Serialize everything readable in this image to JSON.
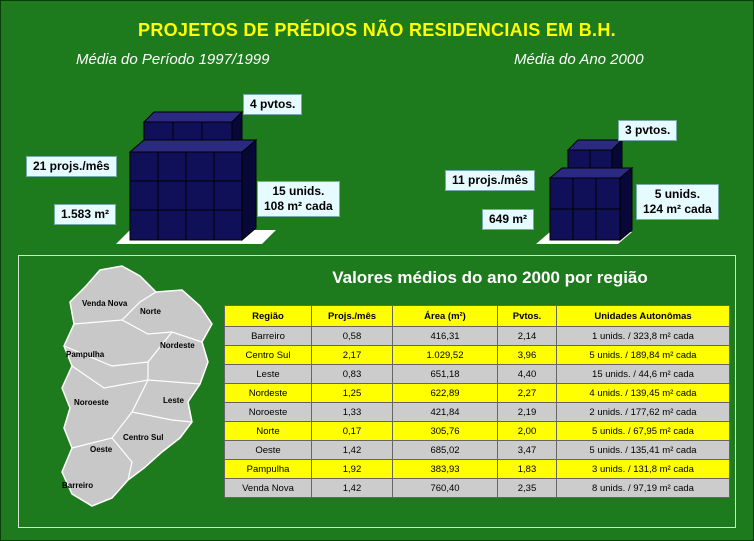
{
  "header": {
    "title": "PROJETOS DE PRÉDIOS NÃO RESIDENCIAIS EM B.H.",
    "subtitle_left": "Média do Período 1997/1999",
    "subtitle_right": "Média do Ano 2000"
  },
  "left_block": {
    "floors_label": "4 pvtos.",
    "projects_label": "21 projs./mês",
    "area_label": "1.583 m²",
    "units_line1": "15 unids.",
    "units_line2": "108 m² cada"
  },
  "right_block": {
    "floors_label": "3 pvtos.",
    "projects_label": "11 projs./mês",
    "area_label": "649 m²",
    "units_line1": "5 unids.",
    "units_line2": "124 m² cada"
  },
  "panel": {
    "title": "Valores médios do ano 2000 por região",
    "headers": [
      "Região",
      "Projs./mês",
      "Área (m²)",
      "Pvtos.",
      "Unidades Autonômas"
    ],
    "rows": [
      [
        "Barreiro",
        "0,58",
        "416,31",
        "2,14",
        "1 unids. / 323,8 m² cada"
      ],
      [
        "Centro Sul",
        "2,17",
        "1.029,52",
        "3,96",
        "5 unids. / 189,84 m² cada"
      ],
      [
        "Leste",
        "0,83",
        "651,18",
        "4,40",
        "15 unids. / 44,6 m² cada"
      ],
      [
        "Nordeste",
        "1,25",
        "622,89",
        "2,27",
        "4 unids. / 139,45 m² cada"
      ],
      [
        "Noroeste",
        "1,33",
        "421,84",
        "2,19",
        "2 unids. / 177,62 m² cada"
      ],
      [
        "Norte",
        "0,17",
        "305,76",
        "2,00",
        "5 unids. / 67,95 m² cada"
      ],
      [
        "Oeste",
        "1,42",
        "685,02",
        "3,47",
        "5 unids. / 135,41 m² cada"
      ],
      [
        "Pampulha",
        "1,92",
        "383,93",
        "1,83",
        "3 unids. / 131,8 m² cada"
      ],
      [
        "Venda Nova",
        "1,42",
        "760,40",
        "2,35",
        "8 unids. / 97,19 m² cada"
      ]
    ]
  },
  "map_labels": {
    "venda_nova": "Venda Nova",
    "norte": "Norte",
    "pampulha": "Pampulha",
    "nordeste": "Nordeste",
    "noroeste": "Noroeste",
    "leste": "Leste",
    "centro_sul": "Centro Sul",
    "oeste": "Oeste",
    "barreiro": "Barreiro"
  },
  "colors": {
    "background": "#1d7a1d",
    "title": "#ffff00",
    "cube": "#101058",
    "row_alt": "#ffff00",
    "row_base": "#cccccc"
  }
}
